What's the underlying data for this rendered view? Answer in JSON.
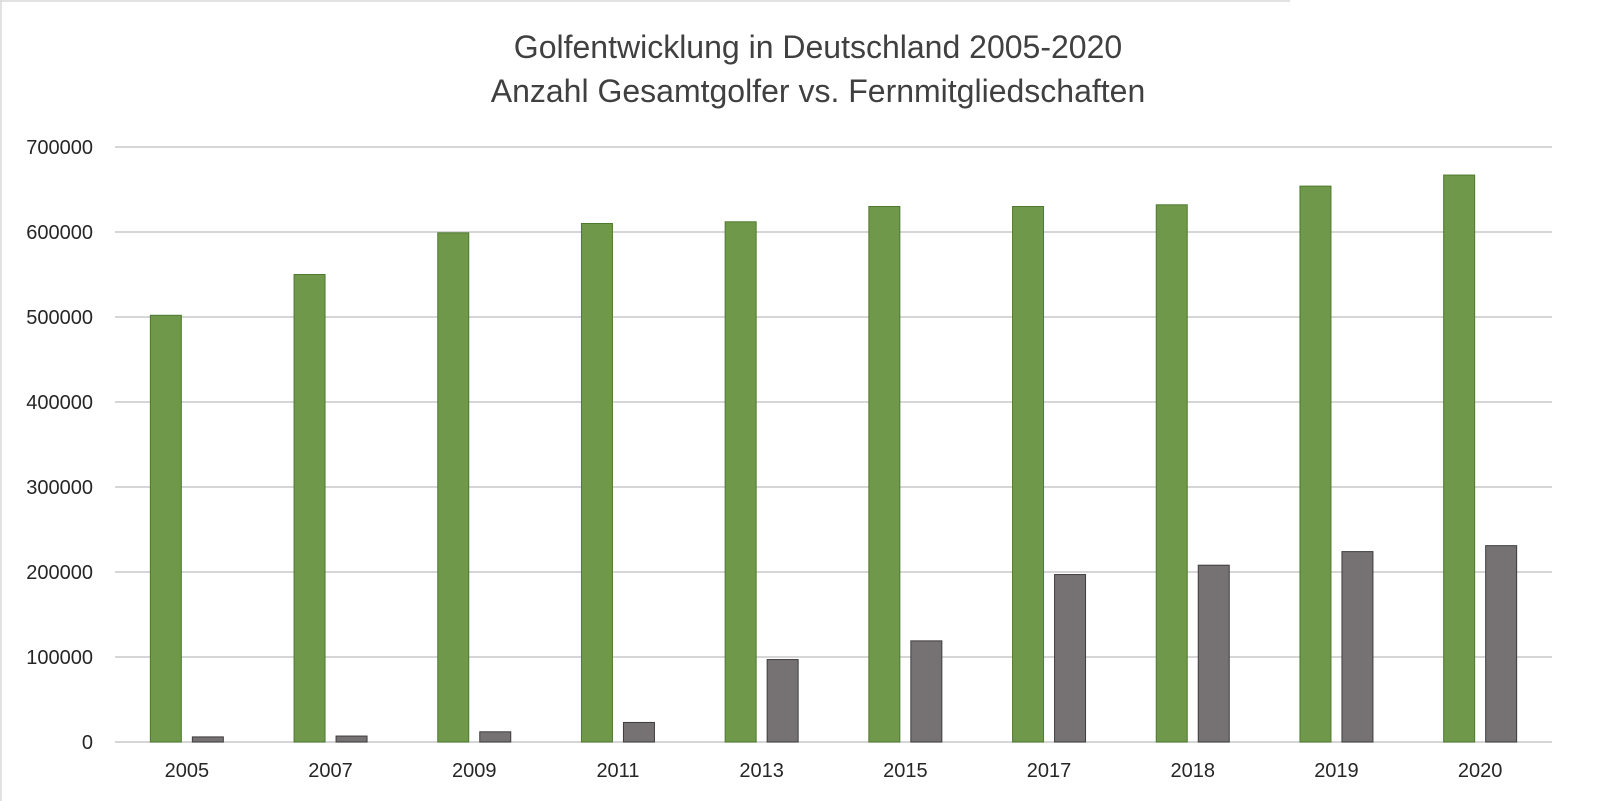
{
  "chart_data": {
    "type": "bar",
    "title": "Golfentwicklung in Deutschland 2005-2020",
    "subtitle": "Anzahl Gesamtgolfer vs. Fernmitgliedschaften",
    "xlabel": "",
    "ylabel": "",
    "categories": [
      "2005",
      "2007",
      "2009",
      "2011",
      "2013",
      "2015",
      "2017",
      "2018",
      "2019",
      "2020"
    ],
    "series": [
      {
        "color": "#70984a",
        "values": [
          502000,
          550000,
          599000,
          610000,
          612000,
          630000,
          630000,
          632000,
          654000,
          667000
        ]
      },
      {
        "color": "#767274",
        "values": [
          6000,
          7000,
          12000,
          23000,
          97000,
          119000,
          197000,
          208000,
          224000,
          231000
        ]
      }
    ],
    "ylim": [
      0,
      700000
    ],
    "yticks": [
      "0",
      "100000",
      "200000",
      "300000",
      "400000",
      "500000",
      "600000",
      "700000"
    ],
    "grid": true,
    "legend": "none"
  }
}
